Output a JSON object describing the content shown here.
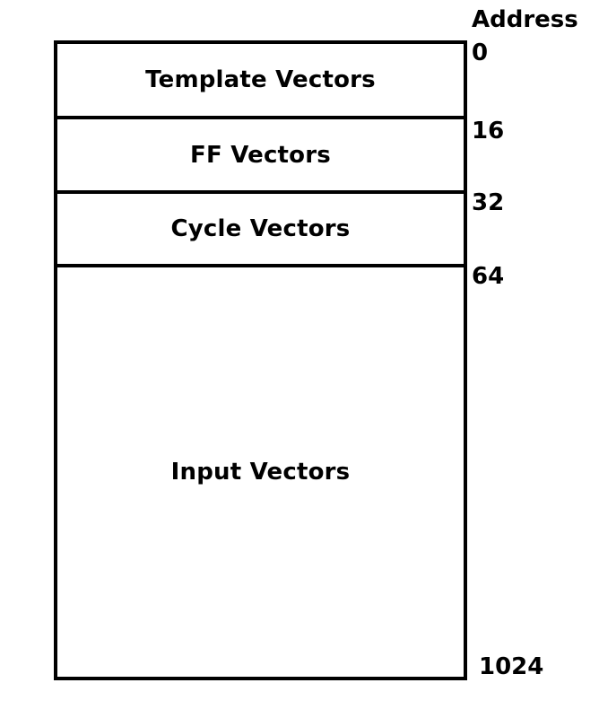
{
  "diagram": {
    "header": "Address",
    "regions": [
      {
        "label": "Template Vectors"
      },
      {
        "label": "FF Vectors"
      },
      {
        "label": "Cycle Vectors"
      },
      {
        "label": "Input Vectors"
      }
    ],
    "addresses": [
      "0",
      "16",
      "32",
      "64",
      "1024"
    ]
  }
}
